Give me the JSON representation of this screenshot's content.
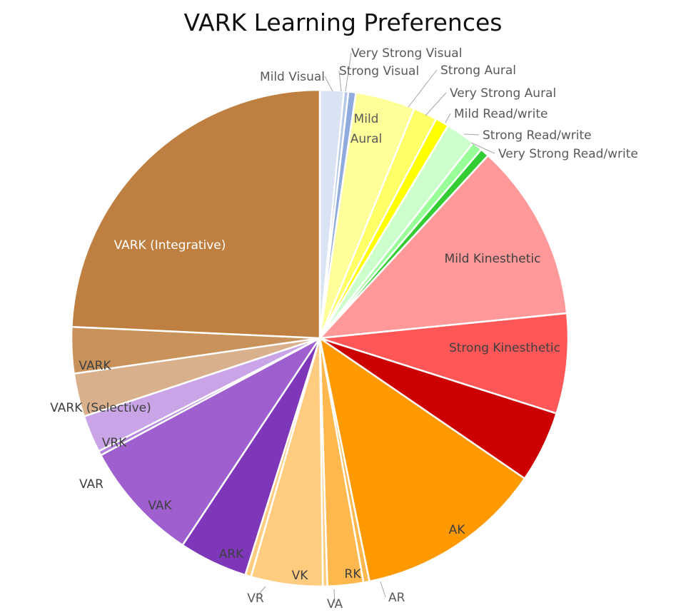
{
  "chart_data": {
    "type": "pie",
    "title": "VARK Learning Preferences",
    "legend": "none",
    "start_angle_deg": 0,
    "direction": "clockwise",
    "slices": [
      {
        "label": "Mild Visual",
        "value": 1.6,
        "color": "#dae3f3",
        "label_color": "#595959"
      },
      {
        "label": "Very Strong Visual",
        "value": 0.3,
        "color": "#b4c7e7",
        "label_color": "#595959"
      },
      {
        "label": "Strong Visual",
        "value": 0.5,
        "color": "#8faadc",
        "label_color": "#595959"
      },
      {
        "label": "Mild Aural",
        "value": 4.0,
        "color": "#ffff99",
        "label_color": "#595959"
      },
      {
        "label": "Strong Aural",
        "value": 1.6,
        "color": "#ffff66",
        "label_color": "#595959"
      },
      {
        "label": "Very Strong Aural",
        "value": 0.9,
        "color": "#ffff00",
        "label_color": "#595959"
      },
      {
        "label": "Mild Read/write",
        "value": 2.0,
        "color": "#ccffcc",
        "label_color": "#595959"
      },
      {
        "label": "Strong Read/write",
        "value": 0.7,
        "color": "#99ff99",
        "label_color": "#595959"
      },
      {
        "label": "Very Strong Read/write",
        "value": 0.6,
        "color": "#33cc33",
        "label_color": "#595959"
      },
      {
        "label": "Mild Kinesthetic",
        "value": 11.9,
        "color": "#ff9999",
        "label_color": "#404040"
      },
      {
        "label": "Strong Kinesthetic",
        "value": 6.7,
        "color": "#ff5757",
        "label_color": "#404040"
      },
      {
        "label": "",
        "value": 4.8,
        "color": "#cc0000",
        "label_color": "#404040"
      },
      {
        "label": "AK",
        "value": 12.6,
        "color": "#ff9900",
        "label_color": "#404040"
      },
      {
        "label": "AR",
        "value": 0.4,
        "color": "#ffb84d",
        "label_color": "#595959"
      },
      {
        "label": "RK",
        "value": 2.4,
        "color": "#ffb84d",
        "label_color": "#404040"
      },
      {
        "label": "VA",
        "value": 0.3,
        "color": "#ffcc80",
        "label_color": "#595959"
      },
      {
        "label": "VK",
        "value": 4.8,
        "color": "#ffcc80",
        "label_color": "#404040"
      },
      {
        "label": "VR",
        "value": 0.4,
        "color": "#ffcc80",
        "label_color": "#595959"
      },
      {
        "label": "ARK",
        "value": 4.6,
        "color": "#7f37b9",
        "label_color": "#404040"
      },
      {
        "label": "VAK",
        "value": 8.1,
        "color": "#9f5fcf",
        "label_color": "#404040"
      },
      {
        "label": "VAR",
        "value": 0.3,
        "color": "#b380dd",
        "label_color": "#404040"
      },
      {
        "label": "VRK",
        "value": 2.5,
        "color": "#c9a5e8",
        "label_color": "#404040"
      },
      {
        "label": "VARK (Selective)",
        "value": 2.9,
        "color": "#d9b08c",
        "label_color": "#404040"
      },
      {
        "label": "VARK",
        "value": 3.1,
        "color": "#c8925a",
        "label_color": "#404040"
      },
      {
        "label": "VARK (Integrative)",
        "value": 25.0,
        "color": "#bf7f40",
        "label_color": "#ffffff"
      }
    ]
  }
}
